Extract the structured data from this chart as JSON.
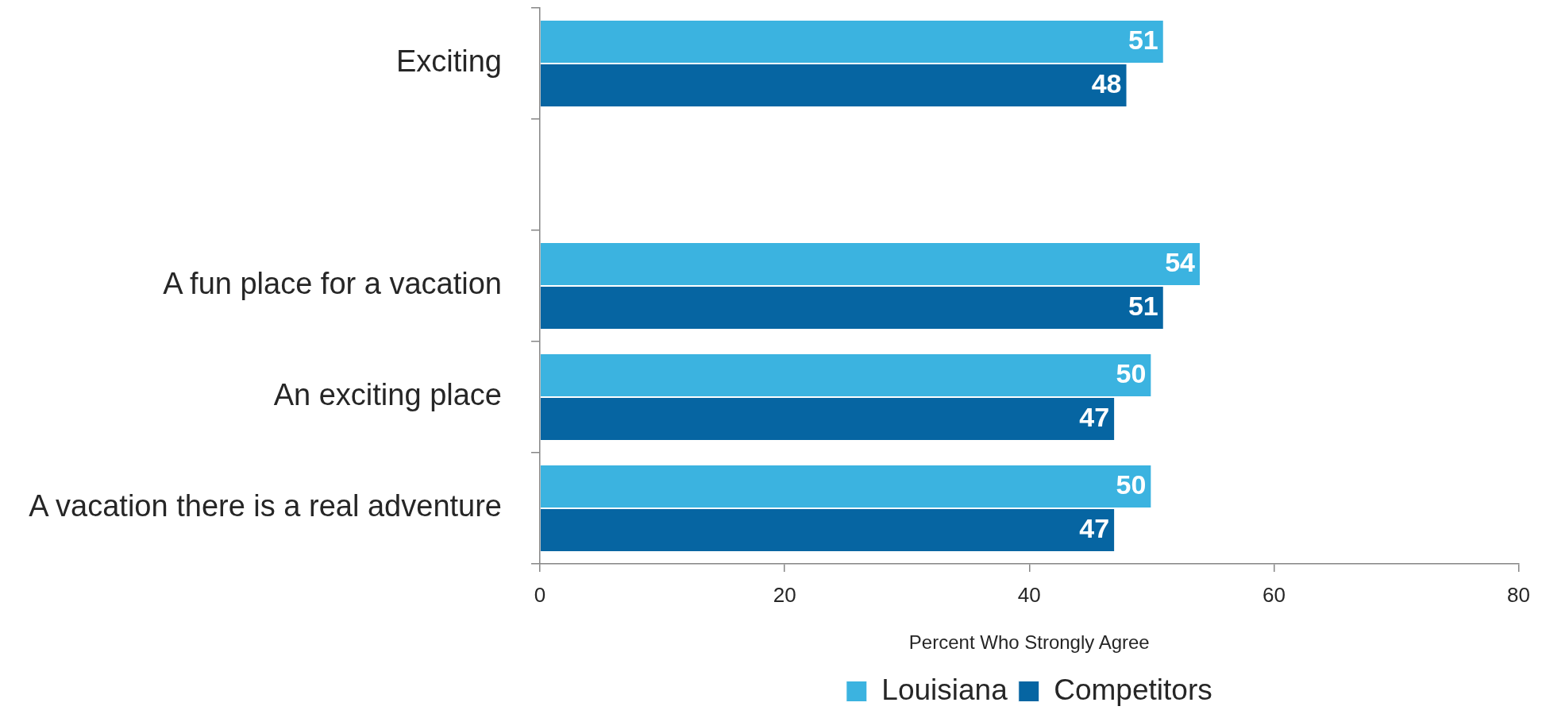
{
  "chart_data": {
    "type": "bar",
    "orientation": "horizontal",
    "categories": [
      "Exciting",
      null,
      "A fun place for a vacation",
      "An exciting place",
      "A vacation there is a real adventure"
    ],
    "series": [
      {
        "name": "Louisiana",
        "color": "#3bb3e0",
        "values": [
          51,
          null,
          54,
          50,
          50
        ]
      },
      {
        "name": "Competitors",
        "color": "#0665a2",
        "values": [
          48,
          null,
          51,
          47,
          47
        ]
      }
    ],
    "xlabel": "Percent Who Strongly Agree",
    "xlim": [
      0,
      80
    ],
    "xticks": [
      0,
      20,
      40,
      60,
      80
    ],
    "data_labels": true,
    "legend": "bottom"
  }
}
